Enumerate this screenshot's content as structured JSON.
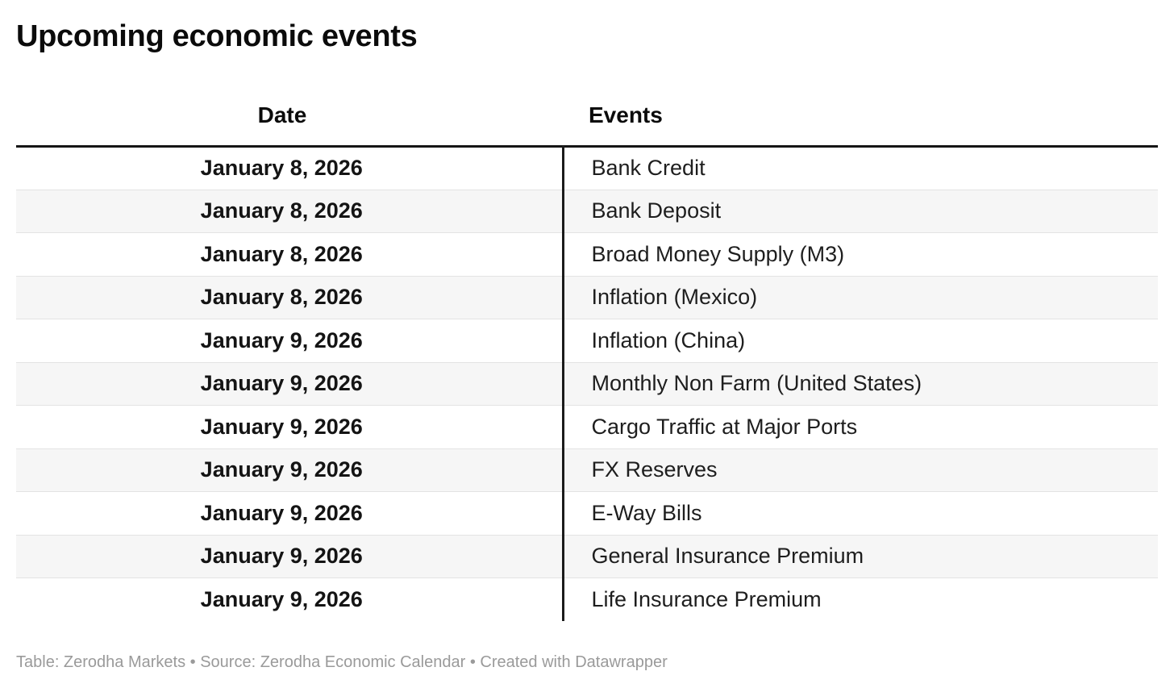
{
  "chart_data": {
    "type": "table",
    "title": "Upcoming economic events",
    "columns": [
      "Date",
      "Events"
    ],
    "rows": [
      [
        "January 8, 2026",
        "Bank Credit"
      ],
      [
        "January 8, 2026",
        "Bank Deposit"
      ],
      [
        "January 8, 2026",
        "Broad Money Supply (M3)"
      ],
      [
        "January 8, 2026",
        "Inflation (Mexico)"
      ],
      [
        "January 9, 2026",
        "Inflation (China)"
      ],
      [
        "January 9, 2026",
        "Monthly Non Farm (United States)"
      ],
      [
        "January 9, 2026",
        "Cargo Traffic at Major Ports"
      ],
      [
        "January 9, 2026",
        "FX Reserves"
      ],
      [
        "January 9, 2026",
        "E-Way Bills"
      ],
      [
        "January 9, 2026",
        "General Insurance Premium"
      ],
      [
        "January 9, 2026",
        "Life Insurance Premium"
      ]
    ],
    "footer": "Table: Zerodha Markets • Source: Zerodha Economic Calendar • Created with Datawrapper",
    "layout_hints": {
      "date_column_align": "center",
      "events_column_align": "left",
      "striped_rows": true,
      "header_rule": "thick-black",
      "column_divider": "vertical-black-body-only"
    }
  },
  "colors": {
    "background": "#ffffff",
    "title_text": "#0b0b0b",
    "body_text": "#1e1e1e",
    "stripe": "#f6f6f6",
    "row_border": "#e3e3e3",
    "divider": "#151515",
    "footer_text": "#9a9a9a"
  }
}
